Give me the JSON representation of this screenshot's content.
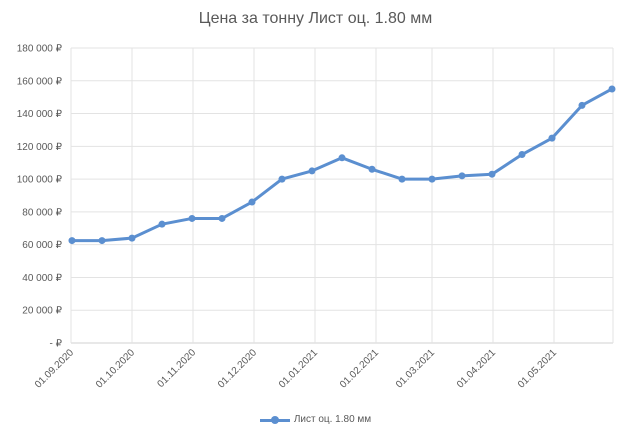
{
  "chart_data": {
    "type": "line",
    "title": "Цена за тонну Лист оц. 1.80 мм",
    "xlabel": "",
    "ylabel": "",
    "ylim": [
      0,
      180000
    ],
    "y_ticks": [
      "-  ₽",
      "20 000 ₽",
      "40 000 ₽",
      "60 000 ₽",
      "80 000 ₽",
      "100 000 ₽",
      "120 000 ₽",
      "140 000 ₽",
      "160 000 ₽",
      "180 000 ₽"
    ],
    "x_tick_labels": [
      "01.09.2020",
      "01.10.2020",
      "01.11.2020",
      "01.12.2020",
      "01.01.2021",
      "01.02.2021",
      "01.03.2021",
      "01.04.2021",
      "01.05.2021"
    ],
    "grid": true,
    "legend_position": "bottom",
    "series": [
      {
        "name": "Лист оц. 1.80 мм",
        "color": "#5b8fd0",
        "values": [
          62500,
          62500,
          64000,
          72500,
          76000,
          76000,
          86000,
          100000,
          105000,
          113000,
          106000,
          100000,
          100000,
          102000,
          103000,
          115000,
          125000,
          145000,
          155000
        ]
      }
    ]
  }
}
